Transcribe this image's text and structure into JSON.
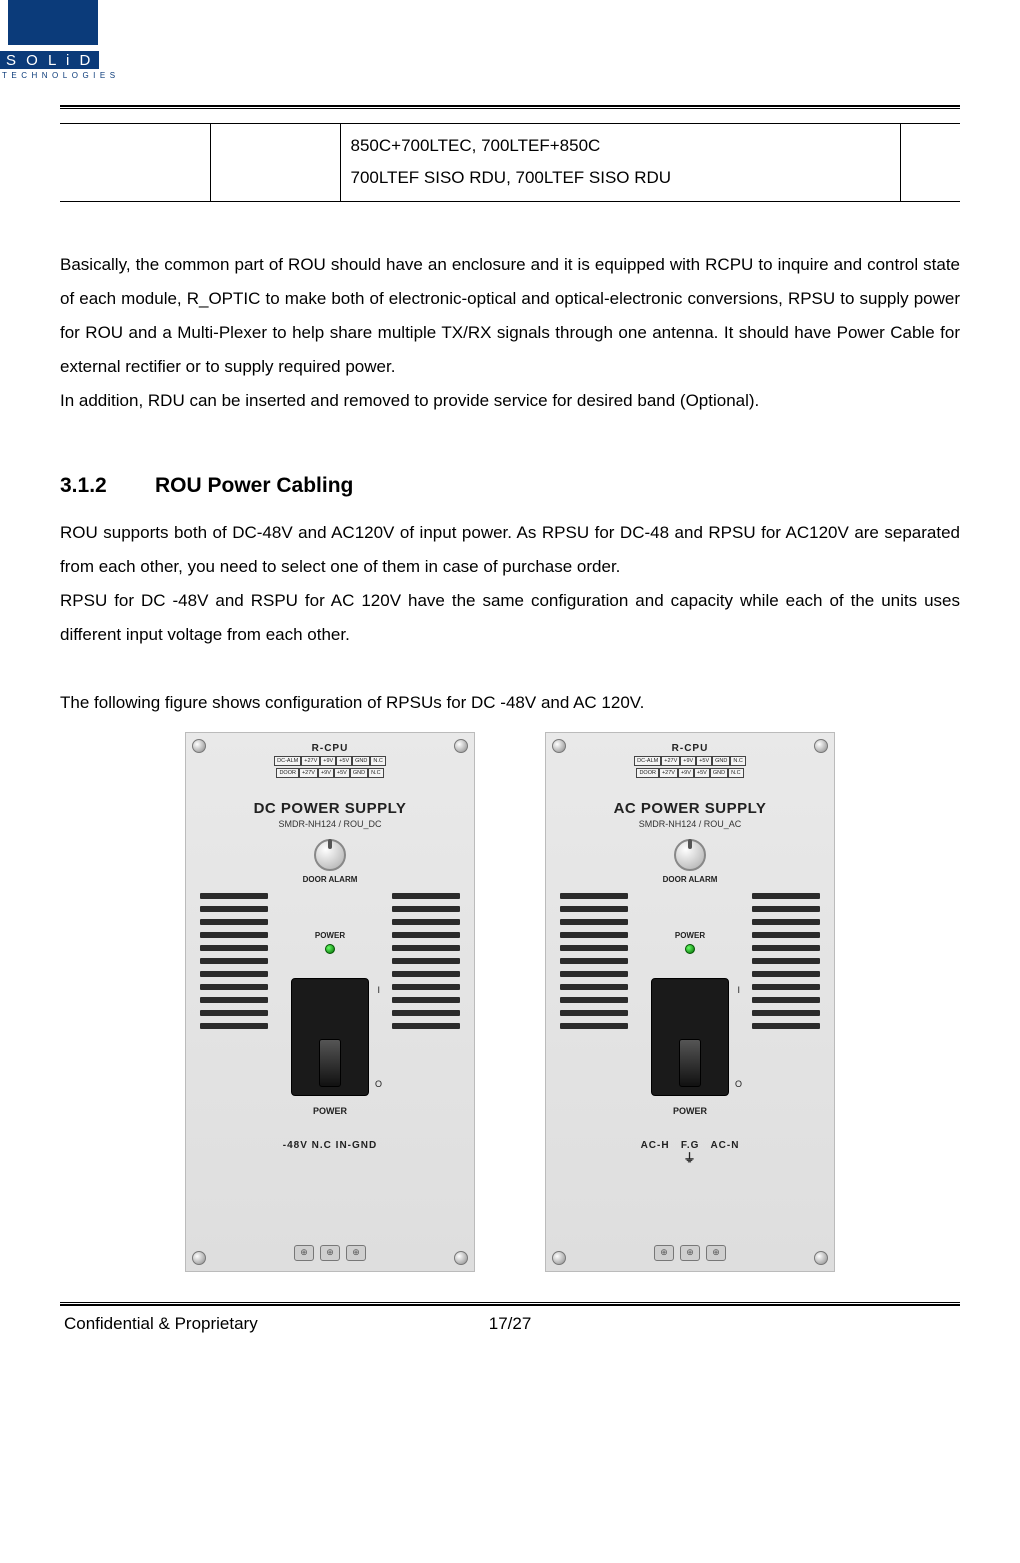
{
  "logo": {
    "brand": "S O L i D",
    "sub": "TECHNOLOGIES"
  },
  "table_fragment": {
    "col3_line1": "850C+700LTEC, 700LTEF+850C",
    "col3_line2": "700LTEF SISO RDU, 700LTEF SISO RDU"
  },
  "paragraph1": "Basically, the common part of ROU should have an enclosure and it is equipped with RCPU to inquire and control state of each module, R_OPTIC to make both of electronic-optical and optical-electronic conversions, RPSU to supply power for ROU and a Multi-Plexer to help share multiple TX/RX signals through one antenna. It should have Power Cable for external rectifier or to supply required power.",
  "paragraph1b": "In addition, RDU can be inserted and removed to provide service for desired band (Optional).",
  "heading": {
    "num": "3.1.2",
    "text": "ROU Power Cabling"
  },
  "paragraph2a": "ROU supports both of DC-48V and AC120V of input power. As RPSU for DC-48 and RPSU for AC120V are separated from each other, you need to select one of them in case of purchase order.",
  "paragraph2b": "RPSU for DC -48V and RSPU for AC 120V have the same configuration and capacity while each of the units uses different input voltage from each other.",
  "paragraph3": "The following figure shows configuration of RPSUs for DC -48V and AC 120V.",
  "psu": {
    "rcpu": "R-CPU",
    "pins_row1": [
      "DC-ALM",
      "+27V",
      "+9V",
      "+5V",
      "GND",
      "N.C"
    ],
    "pins_row2": [
      "DOOR",
      "+27V",
      "+9V",
      "+5V",
      "GND",
      "N.C"
    ],
    "door_alarm": "DOOR ALARM",
    "power": "POWER",
    "dc": {
      "title": "DC POWER SUPPLY",
      "sub": "SMDR-NH124 / ROU_DC",
      "bottom": "-48V   N.C   IN-GND"
    },
    "ac": {
      "title": "AC POWER SUPPLY",
      "sub": "SMDR-NH124 / ROU_AC",
      "bottom_left": "AC-H",
      "bottom_mid": "F.G",
      "bottom_right": "AC-N"
    },
    "switch_i": "I",
    "switch_o": "O",
    "vent_count": 11
  },
  "footer": {
    "left": "Confidential & Proprietary",
    "center": "17/27"
  },
  "colors": {
    "brand": "#0b3b7a",
    "panel_bg": "#e3e3e3",
    "vent": "#2b2b2b",
    "led": "#00aa00"
  }
}
